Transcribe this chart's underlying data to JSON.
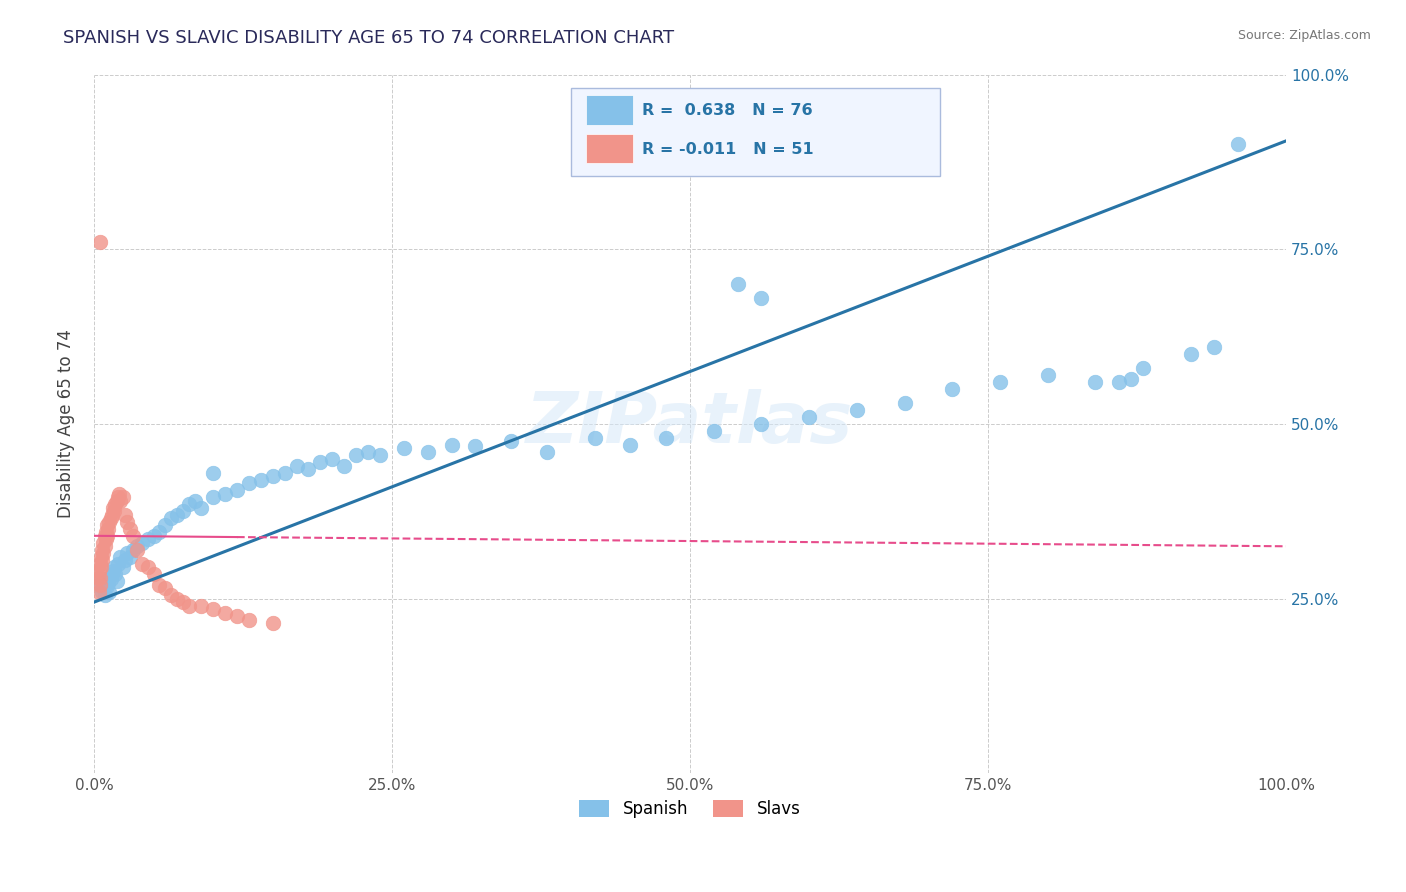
{
  "title": "SPANISH VS SLAVIC DISABILITY AGE 65 TO 74 CORRELATION CHART",
  "source": "Source: ZipAtlas.com",
  "ylabel": "Disability Age 65 to 74",
  "xlim": [
    0.0,
    1.0
  ],
  "ylim": [
    0.0,
    1.0
  ],
  "xticks": [
    0.0,
    0.25,
    0.5,
    0.75,
    1.0
  ],
  "yticks": [
    0.25,
    0.5,
    0.75,
    1.0
  ],
  "xticklabels": [
    "0.0%",
    "25.0%",
    "50.0%",
    "75.0%",
    "100.0%"
  ],
  "yticklabels": [
    "25.0%",
    "50.0%",
    "75.0%",
    "100.0%"
  ],
  "spanish_R": 0.638,
  "spanish_N": 76,
  "slavic_R": -0.011,
  "slavic_N": 51,
  "spanish_color": "#85C1E9",
  "slavic_color": "#F1948A",
  "spanish_line_color": "#2874A6",
  "slavic_line_color": "#E74C8B",
  "background_color": "#FFFFFF",
  "watermark": "ZIPatlas",
  "spanish_x": [
    0.005,
    0.006,
    0.007,
    0.008,
    0.009,
    0.01,
    0.011,
    0.012,
    0.013,
    0.014,
    0.015,
    0.016,
    0.017,
    0.018,
    0.019,
    0.02,
    0.022,
    0.024,
    0.026,
    0.028,
    0.03,
    0.033,
    0.036,
    0.04,
    0.045,
    0.05,
    0.055,
    0.06,
    0.065,
    0.07,
    0.075,
    0.08,
    0.085,
    0.09,
    0.1,
    0.11,
    0.12,
    0.13,
    0.14,
    0.15,
    0.16,
    0.17,
    0.18,
    0.19,
    0.2,
    0.21,
    0.22,
    0.23,
    0.24,
    0.26,
    0.28,
    0.3,
    0.32,
    0.35,
    0.38,
    0.42,
    0.45,
    0.48,
    0.52,
    0.56,
    0.6,
    0.64,
    0.68,
    0.72,
    0.76,
    0.8,
    0.84,
    0.86,
    0.87,
    0.88,
    0.92,
    0.94,
    0.96,
    0.54,
    0.56,
    0.1
  ],
  "spanish_y": [
    0.28,
    0.27,
    0.26,
    0.265,
    0.255,
    0.275,
    0.268,
    0.272,
    0.26,
    0.278,
    0.285,
    0.29,
    0.295,
    0.285,
    0.275,
    0.3,
    0.31,
    0.295,
    0.305,
    0.315,
    0.31,
    0.32,
    0.325,
    0.33,
    0.335,
    0.34,
    0.345,
    0.355,
    0.365,
    0.37,
    0.375,
    0.385,
    0.39,
    0.38,
    0.395,
    0.4,
    0.405,
    0.415,
    0.42,
    0.425,
    0.43,
    0.44,
    0.435,
    0.445,
    0.45,
    0.44,
    0.455,
    0.46,
    0.455,
    0.465,
    0.46,
    0.47,
    0.468,
    0.475,
    0.46,
    0.48,
    0.47,
    0.48,
    0.49,
    0.5,
    0.51,
    0.52,
    0.53,
    0.55,
    0.56,
    0.57,
    0.56,
    0.56,
    0.565,
    0.58,
    0.6,
    0.61,
    0.9,
    0.7,
    0.68,
    0.43
  ],
  "slavic_x": [
    0.003,
    0.004,
    0.004,
    0.005,
    0.005,
    0.005,
    0.006,
    0.006,
    0.007,
    0.007,
    0.008,
    0.008,
    0.009,
    0.009,
    0.01,
    0.01,
    0.011,
    0.011,
    0.012,
    0.013,
    0.014,
    0.015,
    0.016,
    0.017,
    0.018,
    0.019,
    0.02,
    0.021,
    0.022,
    0.024,
    0.026,
    0.028,
    0.03,
    0.033,
    0.036,
    0.04,
    0.045,
    0.05,
    0.055,
    0.06,
    0.065,
    0.07,
    0.075,
    0.08,
    0.09,
    0.1,
    0.11,
    0.12,
    0.13,
    0.15,
    0.005
  ],
  "slavic_y": [
    0.28,
    0.29,
    0.26,
    0.3,
    0.28,
    0.27,
    0.31,
    0.295,
    0.32,
    0.305,
    0.33,
    0.315,
    0.34,
    0.325,
    0.345,
    0.335,
    0.355,
    0.34,
    0.35,
    0.36,
    0.365,
    0.37,
    0.38,
    0.375,
    0.385,
    0.39,
    0.395,
    0.4,
    0.39,
    0.395,
    0.37,
    0.36,
    0.35,
    0.34,
    0.32,
    0.3,
    0.295,
    0.285,
    0.27,
    0.265,
    0.255,
    0.25,
    0.245,
    0.24,
    0.24,
    0.235,
    0.23,
    0.225,
    0.22,
    0.215,
    0.76
  ],
  "slavic_line_y0": 0.34,
  "slavic_line_y1": 0.325,
  "spanish_line_y0": 0.245,
  "spanish_line_y1": 0.905
}
